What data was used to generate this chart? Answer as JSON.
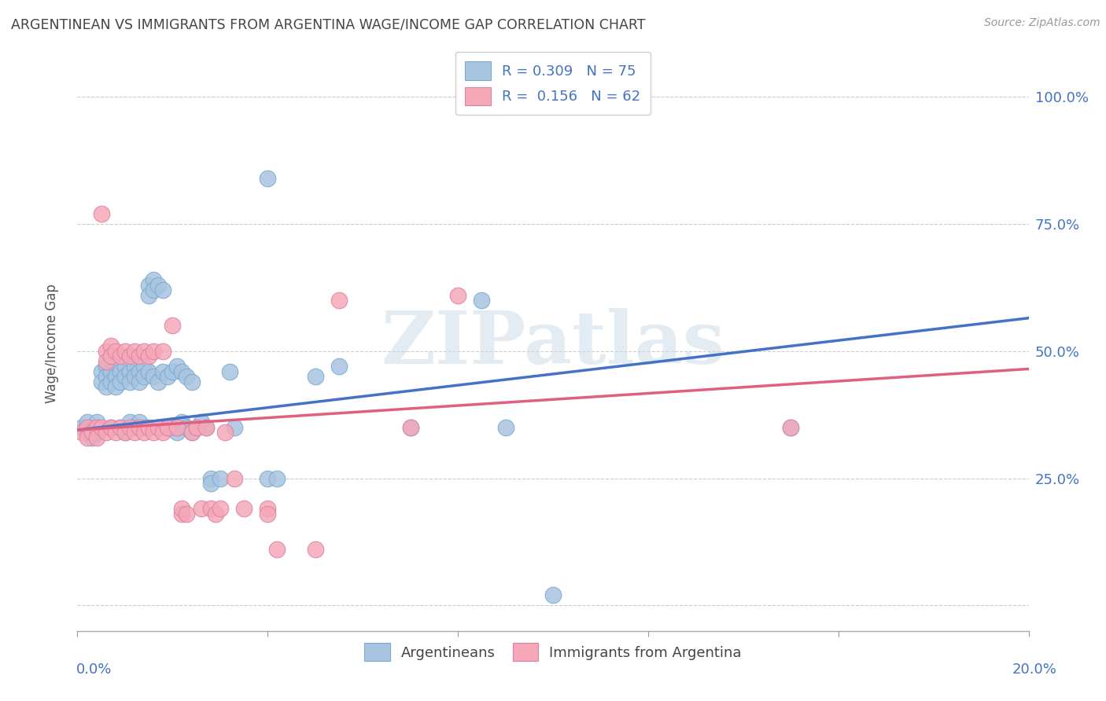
{
  "title": "ARGENTINEAN VS IMMIGRANTS FROM ARGENTINA WAGE/INCOME GAP CORRELATION CHART",
  "source": "Source: ZipAtlas.com",
  "ylabel": "Wage/Income Gap",
  "watermark": "ZIPatlas",
  "blue_color": "#a8c4e0",
  "pink_color": "#f4a8b8",
  "blue_edge": "#7aaace",
  "pink_edge": "#e080a0",
  "line_blue": "#4472c4",
  "line_pink": "#e06080",
  "right_tick_color": "#4472c4",
  "title_color": "#444444",
  "source_color": "#999999",
  "ylabel_color": "#555555",
  "grid_color": "#cccccc",
  "bottom_spine_color": "#aaaaaa",
  "blue_scatter": [
    [
      0.001,
      0.35
    ],
    [
      0.002,
      0.36
    ],
    [
      0.002,
      0.34
    ],
    [
      0.003,
      0.35
    ],
    [
      0.003,
      0.33
    ],
    [
      0.004,
      0.36
    ],
    [
      0.004,
      0.34
    ],
    [
      0.005,
      0.46
    ],
    [
      0.005,
      0.44
    ],
    [
      0.006,
      0.47
    ],
    [
      0.006,
      0.45
    ],
    [
      0.006,
      0.43
    ],
    [
      0.007,
      0.46
    ],
    [
      0.007,
      0.44
    ],
    [
      0.007,
      0.35
    ],
    [
      0.008,
      0.47
    ],
    [
      0.008,
      0.45
    ],
    [
      0.008,
      0.43
    ],
    [
      0.009,
      0.46
    ],
    [
      0.009,
      0.44
    ],
    [
      0.009,
      0.35
    ],
    [
      0.01,
      0.47
    ],
    [
      0.01,
      0.45
    ],
    [
      0.01,
      0.34
    ],
    [
      0.011,
      0.46
    ],
    [
      0.011,
      0.44
    ],
    [
      0.011,
      0.36
    ],
    [
      0.012,
      0.47
    ],
    [
      0.012,
      0.45
    ],
    [
      0.012,
      0.35
    ],
    [
      0.013,
      0.46
    ],
    [
      0.013,
      0.44
    ],
    [
      0.013,
      0.36
    ],
    [
      0.014,
      0.47
    ],
    [
      0.014,
      0.45
    ],
    [
      0.014,
      0.35
    ],
    [
      0.015,
      0.63
    ],
    [
      0.015,
      0.61
    ],
    [
      0.015,
      0.46
    ],
    [
      0.016,
      0.64
    ],
    [
      0.016,
      0.62
    ],
    [
      0.016,
      0.45
    ],
    [
      0.017,
      0.63
    ],
    [
      0.017,
      0.44
    ],
    [
      0.018,
      0.62
    ],
    [
      0.018,
      0.46
    ],
    [
      0.019,
      0.35
    ],
    [
      0.019,
      0.45
    ],
    [
      0.02,
      0.46
    ],
    [
      0.02,
      0.35
    ],
    [
      0.021,
      0.47
    ],
    [
      0.021,
      0.34
    ],
    [
      0.022,
      0.46
    ],
    [
      0.022,
      0.36
    ],
    [
      0.023,
      0.45
    ],
    [
      0.023,
      0.35
    ],
    [
      0.024,
      0.44
    ],
    [
      0.024,
      0.34
    ],
    [
      0.025,
      0.35
    ],
    [
      0.026,
      0.36
    ],
    [
      0.027,
      0.35
    ],
    [
      0.028,
      0.25
    ],
    [
      0.028,
      0.24
    ],
    [
      0.03,
      0.25
    ],
    [
      0.032,
      0.46
    ],
    [
      0.033,
      0.35
    ],
    [
      0.04,
      0.84
    ],
    [
      0.04,
      0.25
    ],
    [
      0.042,
      0.25
    ],
    [
      0.05,
      0.45
    ],
    [
      0.055,
      0.47
    ],
    [
      0.07,
      0.35
    ],
    [
      0.085,
      0.6
    ],
    [
      0.09,
      0.35
    ],
    [
      0.1,
      0.02
    ],
    [
      0.15,
      0.35
    ]
  ],
  "pink_scatter": [
    [
      0.001,
      0.34
    ],
    [
      0.002,
      0.35
    ],
    [
      0.002,
      0.33
    ],
    [
      0.003,
      0.34
    ],
    [
      0.004,
      0.35
    ],
    [
      0.004,
      0.33
    ],
    [
      0.005,
      0.77
    ],
    [
      0.005,
      0.35
    ],
    [
      0.006,
      0.5
    ],
    [
      0.006,
      0.48
    ],
    [
      0.006,
      0.34
    ],
    [
      0.007,
      0.51
    ],
    [
      0.007,
      0.49
    ],
    [
      0.007,
      0.35
    ],
    [
      0.008,
      0.5
    ],
    [
      0.008,
      0.34
    ],
    [
      0.009,
      0.49
    ],
    [
      0.009,
      0.35
    ],
    [
      0.01,
      0.5
    ],
    [
      0.01,
      0.34
    ],
    [
      0.011,
      0.49
    ],
    [
      0.011,
      0.35
    ],
    [
      0.012,
      0.5
    ],
    [
      0.012,
      0.34
    ],
    [
      0.013,
      0.49
    ],
    [
      0.013,
      0.35
    ],
    [
      0.014,
      0.5
    ],
    [
      0.014,
      0.34
    ],
    [
      0.015,
      0.49
    ],
    [
      0.015,
      0.35
    ],
    [
      0.016,
      0.5
    ],
    [
      0.016,
      0.34
    ],
    [
      0.017,
      0.35
    ],
    [
      0.018,
      0.5
    ],
    [
      0.018,
      0.34
    ],
    [
      0.019,
      0.35
    ],
    [
      0.02,
      0.55
    ],
    [
      0.021,
      0.35
    ],
    [
      0.022,
      0.18
    ],
    [
      0.022,
      0.19
    ],
    [
      0.023,
      0.18
    ],
    [
      0.024,
      0.34
    ],
    [
      0.025,
      0.35
    ],
    [
      0.026,
      0.19
    ],
    [
      0.027,
      0.35
    ],
    [
      0.028,
      0.19
    ],
    [
      0.029,
      0.18
    ],
    [
      0.03,
      0.19
    ],
    [
      0.031,
      0.34
    ],
    [
      0.033,
      0.25
    ],
    [
      0.035,
      0.19
    ],
    [
      0.04,
      0.19
    ],
    [
      0.04,
      0.18
    ],
    [
      0.042,
      0.11
    ],
    [
      0.05,
      0.11
    ],
    [
      0.055,
      0.6
    ],
    [
      0.07,
      0.35
    ],
    [
      0.08,
      0.61
    ],
    [
      0.15,
      0.35
    ]
  ],
  "blue_line_x": [
    0.0,
    0.2
  ],
  "blue_line_y": [
    0.345,
    0.565
  ],
  "pink_line_x": [
    0.0,
    0.2
  ],
  "pink_line_y": [
    0.345,
    0.465
  ],
  "xlim": [
    0.0,
    0.2
  ],
  "ylim": [
    -0.05,
    1.08
  ],
  "ytick_vals": [
    0.0,
    0.25,
    0.5,
    0.75,
    1.0
  ],
  "ytick_labels": [
    "",
    "25.0%",
    "50.0%",
    "75.0%",
    "100.0%"
  ],
  "xtick_vals": [
    0.0,
    0.04,
    0.08,
    0.12,
    0.16,
    0.2
  ]
}
